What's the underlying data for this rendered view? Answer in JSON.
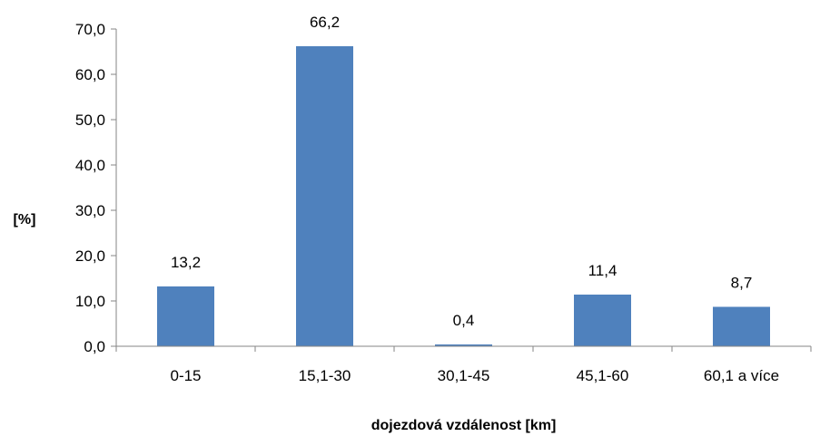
{
  "chart_data": {
    "type": "bar",
    "title": "",
    "xlabel": "dojezdová vzdálenost [km]",
    "ylabel": "[%]",
    "categories": [
      "0-15",
      "15,1-30",
      "30,1-45",
      "45,1-60",
      "60,1 a více"
    ],
    "values": [
      13.2,
      66.2,
      0.4,
      11.4,
      8.7
    ],
    "data_labels": [
      "13,2",
      "66,2",
      "0,4",
      "11,4",
      "8,7"
    ],
    "ylim": [
      0,
      70
    ],
    "yticks": [
      0,
      10,
      20,
      30,
      40,
      50,
      60,
      70
    ],
    "ytick_labels": [
      "0,0",
      "10,0",
      "20,0",
      "30,0",
      "40,0",
      "50,0",
      "60,0",
      "70,0"
    ],
    "grid": false,
    "legend": "none",
    "bar_color": "#4F81BD",
    "axis_color": "#868686"
  }
}
